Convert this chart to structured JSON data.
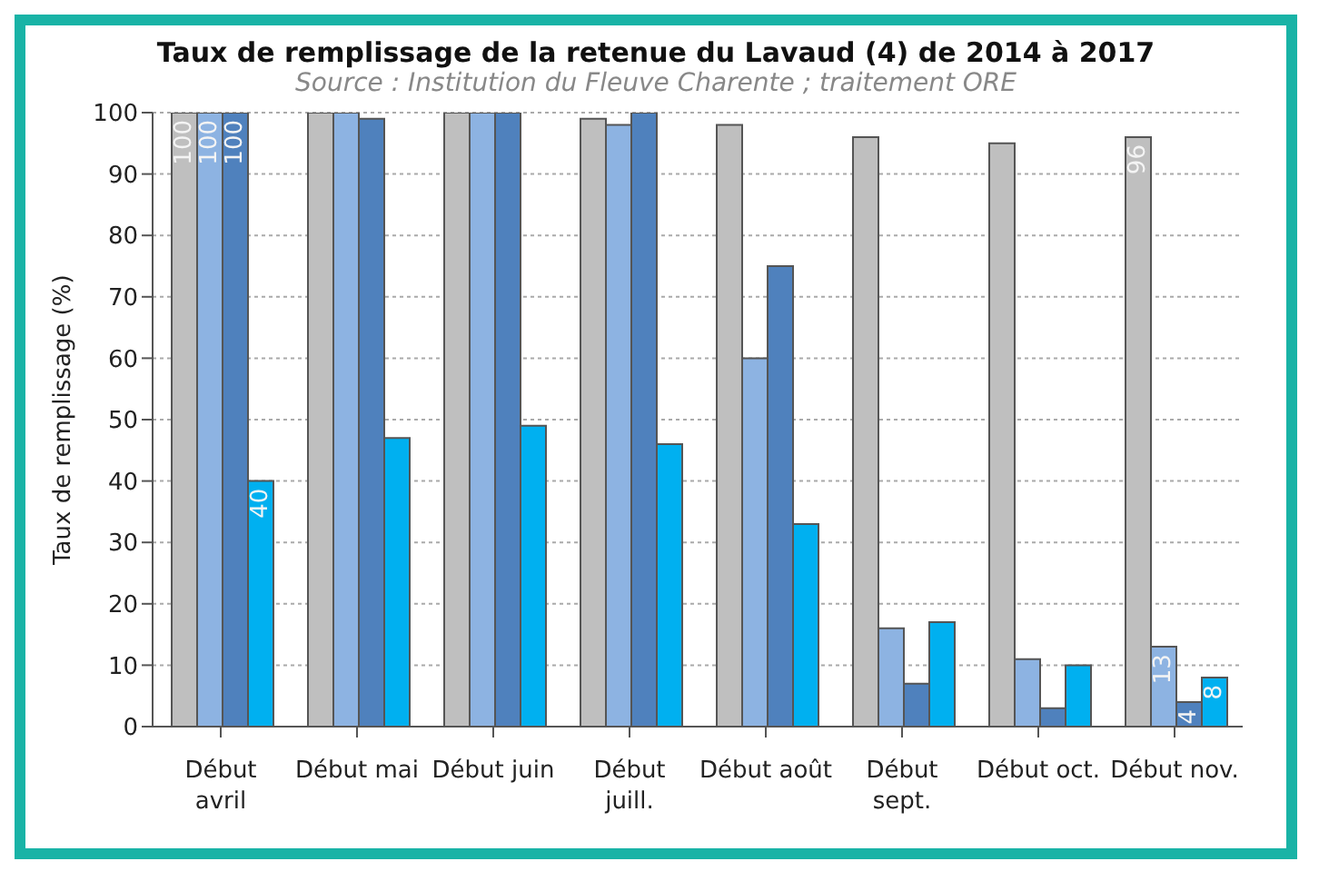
{
  "chart_data": {
    "type": "bar",
    "title": "Taux de remplissage de la retenue du Lavaud (4) de 2014 à 2017",
    "subtitle": "Source : Institution du Fleuve Charente ; traitement ORE",
    "ylabel": "Taux de remplissage (%)",
    "categories": [
      "Début avril",
      "Début mai",
      "Début juin",
      "Début juill.",
      "Début août",
      "Début sept.",
      "Début oct.",
      "Début nov."
    ],
    "series": [
      {
        "color": "#bfbfbf",
        "values": [
          100,
          100,
          100,
          99,
          98,
          96,
          95,
          96
        ],
        "value_labels": [
          "100",
          null,
          null,
          null,
          null,
          null,
          null,
          "96"
        ]
      },
      {
        "color": "#8db3e2",
        "values": [
          100,
          100,
          100,
          98,
          60,
          16,
          11,
          13
        ],
        "value_labels": [
          "100",
          null,
          null,
          null,
          null,
          null,
          null,
          "13"
        ]
      },
      {
        "color": "#4f81bd",
        "values": [
          100,
          99,
          100,
          100,
          75,
          7,
          3,
          4
        ],
        "value_labels": [
          "100",
          null,
          null,
          null,
          null,
          null,
          null,
          "4"
        ]
      },
      {
        "color": "#00b0f0",
        "values": [
          40,
          47,
          49,
          46,
          33,
          17,
          10,
          8
        ],
        "value_labels": [
          "40",
          null,
          null,
          null,
          null,
          null,
          null,
          "8"
        ]
      }
    ],
    "ylim": [
      0,
      100
    ],
    "yticks": [
      0,
      10,
      20,
      30,
      40,
      50,
      60,
      70,
      80,
      90,
      100
    ],
    "grid": "y",
    "legend": false
  }
}
